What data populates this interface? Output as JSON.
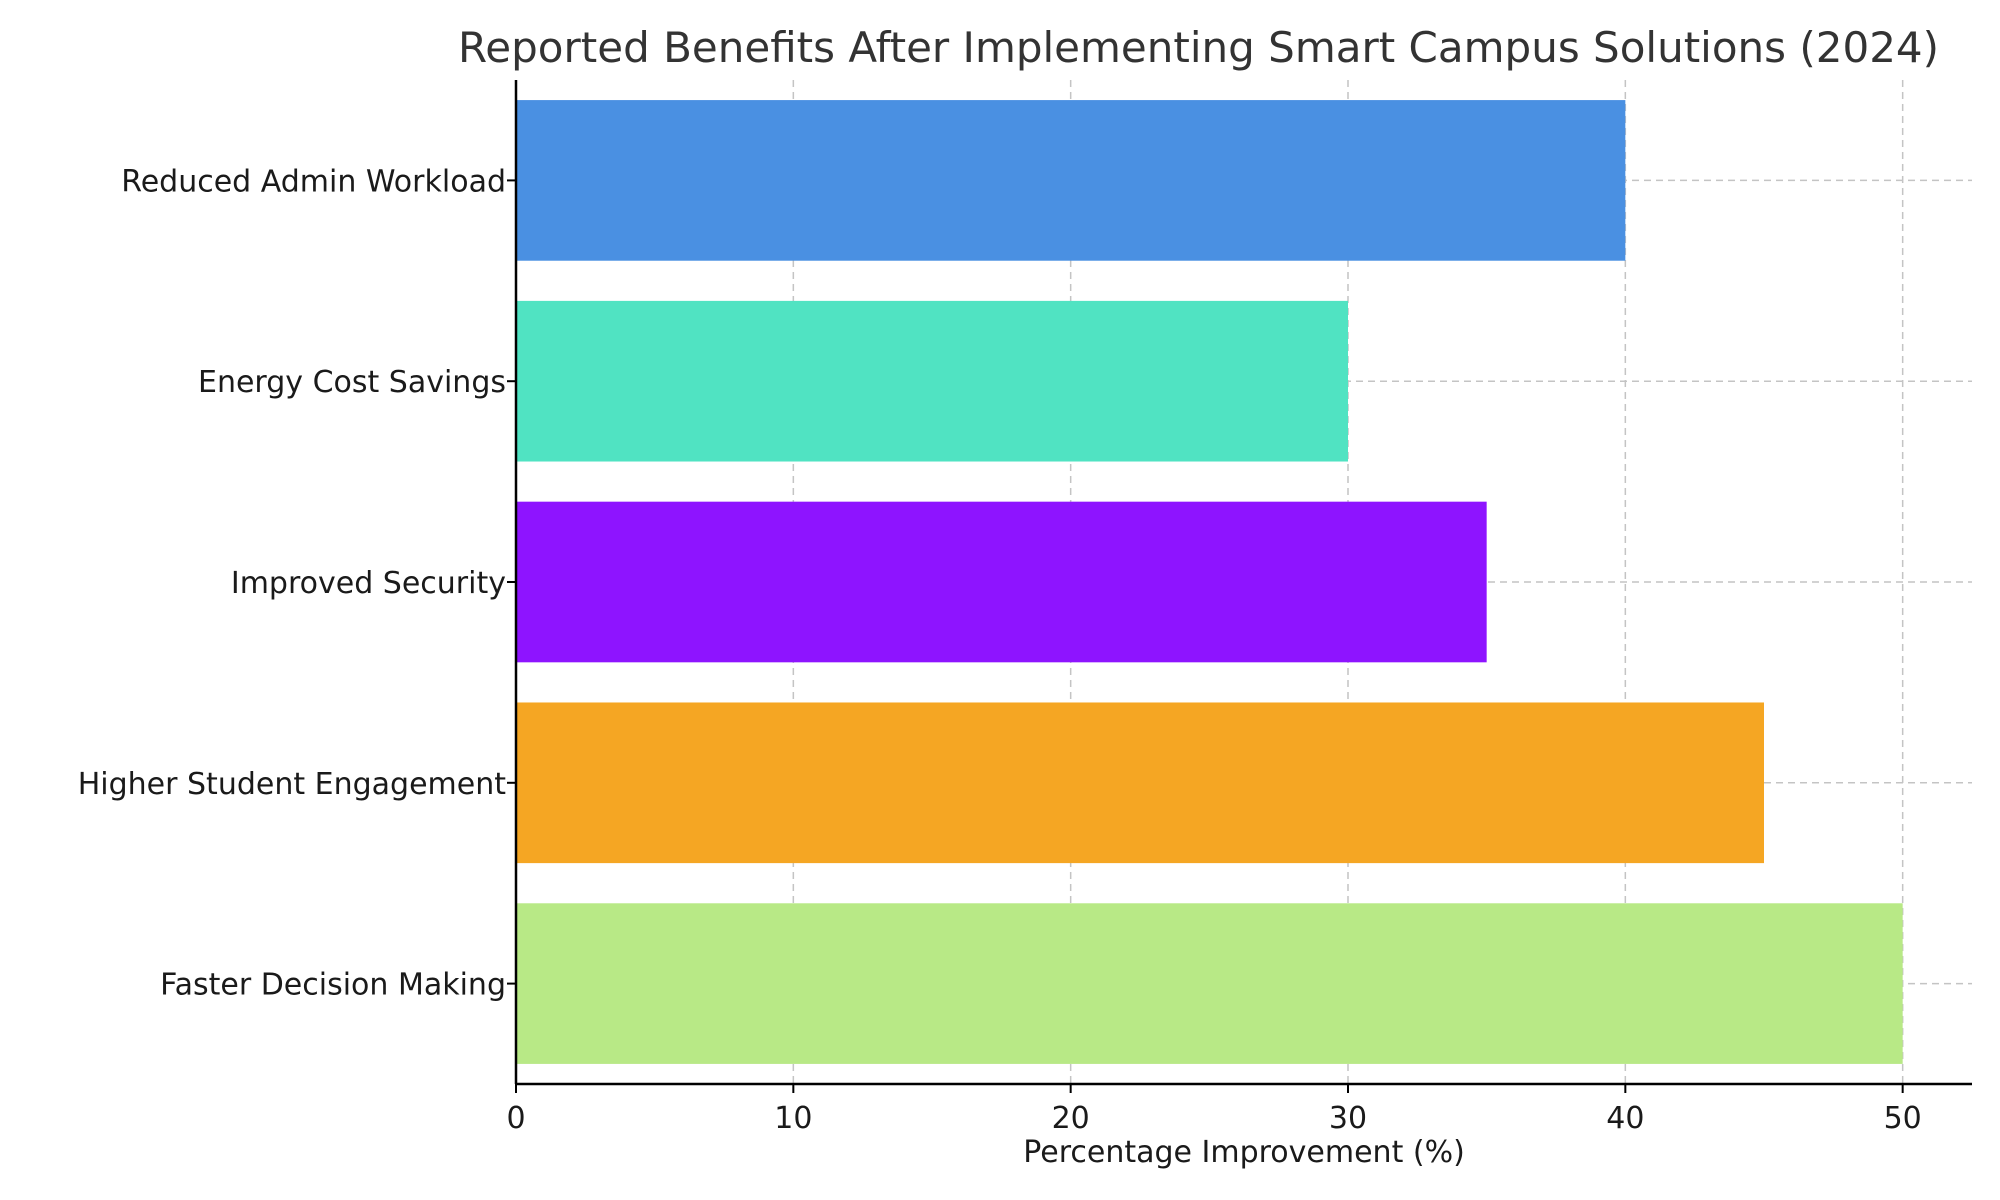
{
  "chart_data": {
    "type": "bar",
    "orientation": "horizontal",
    "title": "Reported Benefits After Implementing Smart Campus Solutions (2024)",
    "xlabel": "Percentage Improvement (%)",
    "ylabel": "",
    "categories": [
      "Reduced Admin Workload",
      "Energy Cost Savings",
      "Improved Security",
      "Higher Student Engagement",
      "Faster Decision Making"
    ],
    "values": [
      40,
      30,
      35,
      45,
      50
    ],
    "colors": [
      "#4a90e2",
      "#50e3c2",
      "#8e14ff",
      "#f5a623",
      "#b8e986"
    ],
    "xlim": [
      0,
      52.5
    ],
    "xticks": [
      0,
      10,
      20,
      30,
      40,
      50
    ],
    "grid": true
  }
}
